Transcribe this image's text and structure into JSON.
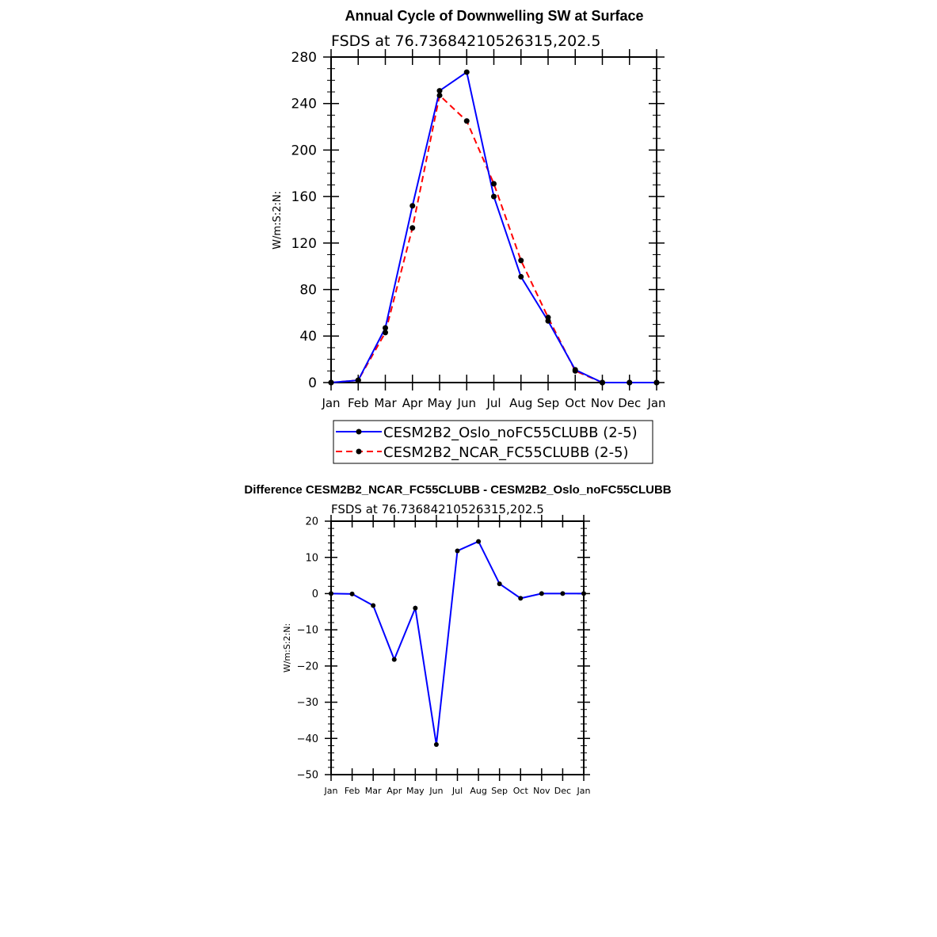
{
  "chart_data": [
    {
      "type": "line",
      "title": "Annual Cycle of Downwelling SW at Surface",
      "subtitle": "FSDS at 76.73684210526315,202.5",
      "xlabel": "",
      "ylabel": "W/m:S:2:N:",
      "categories": [
        "Jan",
        "Feb",
        "Mar",
        "Apr",
        "May",
        "Jun",
        "Jul",
        "Aug",
        "Sep",
        "Oct",
        "Nov",
        "Dec",
        "Jan"
      ],
      "ylim": [
        0,
        280
      ],
      "yticks": [
        0,
        40,
        80,
        120,
        160,
        200,
        240,
        280
      ],
      "yminor": 10,
      "legend_position": "bottom",
      "series": [
        {
          "name": "CESM2B2_Oslo_noFC55CLUBB (2-5)",
          "color": "#0000ff",
          "dash": "solid",
          "values": [
            0,
            2,
            47,
            152,
            251,
            267,
            160,
            91,
            53,
            11,
            0,
            0,
            0
          ]
        },
        {
          "name": "CESM2B2_NCAR_FC55CLUBB (2-5)",
          "color": "#ff0000",
          "dash": "dashed",
          "values": [
            0,
            2,
            43,
            133,
            247,
            225,
            171,
            105,
            56,
            10,
            0,
            0,
            0
          ]
        }
      ]
    },
    {
      "type": "line",
      "title": "Difference CESM2B2_NCAR_FC55CLUBB - CESM2B2_Oslo_noFC55CLUBB",
      "subtitle": "FSDS at 76.73684210526315,202.5",
      "xlabel": "",
      "ylabel": "W/m:S:2:N:",
      "categories": [
        "Jan",
        "Feb",
        "Mar",
        "Apr",
        "May",
        "Jun",
        "Jul",
        "Aug",
        "Sep",
        "Oct",
        "Nov",
        "Dec",
        "Jan"
      ],
      "ylim": [
        -50,
        20
      ],
      "yticks": [
        -50,
        -40,
        -30,
        -20,
        -10,
        0,
        10,
        20
      ],
      "yminor": 2,
      "series": [
        {
          "name": "Difference",
          "color": "#0000ff",
          "dash": "solid",
          "values": [
            0,
            -0.1,
            -3.3,
            -18.2,
            -4,
            -41.7,
            11.8,
            14.4,
            2.7,
            -1.3,
            0,
            0,
            0
          ]
        }
      ]
    }
  ]
}
